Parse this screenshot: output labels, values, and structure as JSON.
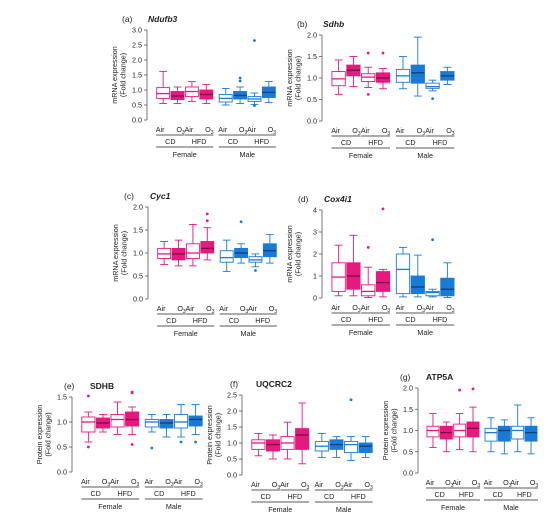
{
  "chart_data": [
    {
      "type": "box",
      "letter": "(a)",
      "title": "Ndufb3",
      "title_style": "italic",
      "ylabel": [
        "mRNA expression",
        "(Fold change)"
      ],
      "ylim": [
        0,
        3.0
      ],
      "yticks": [
        "0.0",
        "0.5",
        "1.0",
        "1.5",
        "2.0",
        "2.5",
        "3.0"
      ],
      "bottom_labels": [
        "Air",
        "O3",
        "Air",
        "O3",
        "Air",
        "O3",
        "Air",
        "O3"
      ],
      "diet_labels": [
        "CD",
        "HFD",
        "CD",
        "HFD"
      ],
      "sex_labels": [
        "Female",
        "Male"
      ],
      "colors": {
        "female": "#e6197e",
        "male": "#1a7ad6"
      },
      "boxes": [
        {
          "q1": 0.72,
          "median": 0.88,
          "q3": 1.08,
          "wlo": 0.55,
          "whi": 1.62,
          "out": []
        },
        {
          "q1": 0.68,
          "median": 0.8,
          "q3": 0.95,
          "wlo": 0.55,
          "whi": 1.1,
          "out": []
        },
        {
          "q1": 0.78,
          "median": 0.95,
          "q3": 1.1,
          "wlo": 0.62,
          "whi": 1.28,
          "out": []
        },
        {
          "q1": 0.7,
          "median": 0.85,
          "q3": 1.0,
          "wlo": 0.55,
          "whi": 1.18,
          "out": []
        },
        {
          "q1": 0.6,
          "median": 0.72,
          "q3": 0.85,
          "wlo": 0.5,
          "whi": 1.05,
          "out": []
        },
        {
          "q1": 0.7,
          "median": 0.82,
          "q3": 0.95,
          "wlo": 0.55,
          "whi": 1.1,
          "out": [
            1.3,
            1.4
          ]
        },
        {
          "q1": 0.62,
          "median": 0.7,
          "q3": 0.78,
          "wlo": 0.52,
          "whi": 0.9,
          "out": [
            2.65,
            0.48
          ]
        },
        {
          "q1": 0.75,
          "median": 0.92,
          "q3": 1.1,
          "wlo": 0.58,
          "whi": 1.28,
          "out": []
        }
      ]
    },
    {
      "type": "box",
      "letter": "(b)",
      "title": "Sdhb",
      "title_style": "italic",
      "ylabel": [
        "mRNA expression",
        "(Fold change)"
      ],
      "ylim": [
        0,
        2.0
      ],
      "yticks": [
        "0.0",
        "0.5",
        "1.0",
        "1.5",
        "2.0"
      ],
      "bottom_labels": [
        "Air",
        "O3",
        "Air",
        "O3",
        "Air",
        "O3",
        "Air",
        "O3"
      ],
      "diet_labels": [
        "CD",
        "HFD",
        "CD",
        "HFD"
      ],
      "sex_labels": [
        "Female",
        "Male"
      ],
      "colors": {
        "female": "#e6197e",
        "male": "#1a7ad6"
      },
      "boxes": [
        {
          "q1": 0.82,
          "median": 0.98,
          "q3": 1.15,
          "wlo": 0.62,
          "whi": 1.42,
          "out": []
        },
        {
          "q1": 1.05,
          "median": 1.18,
          "q3": 1.3,
          "wlo": 0.8,
          "whi": 1.5,
          "out": []
        },
        {
          "q1": 0.92,
          "median": 1.02,
          "q3": 1.1,
          "wlo": 0.78,
          "whi": 1.25,
          "out": [
            1.58,
            0.62
          ]
        },
        {
          "q1": 0.9,
          "median": 1.0,
          "q3": 1.12,
          "wlo": 0.75,
          "whi": 1.22,
          "out": [
            1.58
          ]
        },
        {
          "q1": 0.9,
          "median": 1.05,
          "q3": 1.2,
          "wlo": 0.75,
          "whi": 1.5,
          "out": []
        },
        {
          "q1": 0.88,
          "median": 1.12,
          "q3": 1.3,
          "wlo": 0.58,
          "whi": 1.95,
          "out": []
        },
        {
          "q1": 0.76,
          "median": 0.8,
          "q3": 0.88,
          "wlo": 0.7,
          "whi": 0.95,
          "out": [
            0.52
          ]
        },
        {
          "q1": 0.95,
          "median": 1.05,
          "q3": 1.15,
          "wlo": 0.85,
          "whi": 1.25,
          "out": []
        }
      ]
    },
    {
      "type": "box",
      "letter": "(c)",
      "title": "Cyc1",
      "title_style": "italic",
      "ylabel": [
        "mRNA expression",
        "(Fold change)"
      ],
      "ylim": [
        0,
        2.0
      ],
      "yticks": [
        "0.0",
        "0.5",
        "1.0",
        "1.5",
        "2.0"
      ],
      "bottom_labels": [
        "Air",
        "O3",
        "Air",
        "O3",
        "Air",
        "O3",
        "Air",
        "O3"
      ],
      "diet_labels": [
        "CD",
        "HFD",
        "CD",
        "HFD"
      ],
      "sex_labels": [
        "Female",
        "Male"
      ],
      "colors": {
        "female": "#e6197e",
        "male": "#1a7ad6"
      },
      "boxes": [
        {
          "q1": 0.88,
          "median": 0.98,
          "q3": 1.1,
          "wlo": 0.75,
          "whi": 1.25,
          "out": []
        },
        {
          "q1": 0.85,
          "median": 0.98,
          "q3": 1.1,
          "wlo": 0.72,
          "whi": 1.28,
          "out": []
        },
        {
          "q1": 0.88,
          "median": 1.0,
          "q3": 1.2,
          "wlo": 0.72,
          "whi": 1.62,
          "out": []
        },
        {
          "q1": 1.0,
          "median": 1.1,
          "q3": 1.25,
          "wlo": 0.85,
          "whi": 1.55,
          "out": [
            1.85,
            1.7
          ]
        },
        {
          "q1": 0.8,
          "median": 0.9,
          "q3": 1.05,
          "wlo": 0.6,
          "whi": 1.28,
          "out": []
        },
        {
          "q1": 0.9,
          "median": 1.0,
          "q3": 1.1,
          "wlo": 0.78,
          "whi": 1.2,
          "out": [
            1.68
          ]
        },
        {
          "q1": 0.8,
          "median": 0.85,
          "q3": 0.92,
          "wlo": 0.7,
          "whi": 0.98,
          "out": [
            0.62
          ]
        },
        {
          "q1": 0.92,
          "median": 1.05,
          "q3": 1.2,
          "wlo": 0.78,
          "whi": 1.4,
          "out": []
        }
      ]
    },
    {
      "type": "box",
      "letter": "(d)",
      "title": "Cox4i1",
      "title_style": "italic",
      "ylabel": [
        "mRNA expression",
        "(Fold change)"
      ],
      "ylim": [
        0,
        4.0
      ],
      "yticks": [
        "0",
        "1",
        "2",
        "3",
        "4"
      ],
      "bottom_labels": [
        "Air",
        "O3",
        "Air",
        "O3",
        "Air",
        "O3",
        "Air",
        "O3"
      ],
      "diet_labels": [
        "CD",
        "HFD",
        "CD",
        "HFD"
      ],
      "sex_labels": [
        "Female",
        "Male"
      ],
      "colors": {
        "female": "#e6197e",
        "male": "#1a7ad6"
      },
      "boxes": [
        {
          "q1": 0.3,
          "median": 0.95,
          "q3": 1.6,
          "wlo": 0.1,
          "whi": 2.4,
          "out": []
        },
        {
          "q1": 0.4,
          "median": 1.0,
          "q3": 1.6,
          "wlo": 0.1,
          "whi": 2.85,
          "out": []
        },
        {
          "q1": 0.1,
          "median": 0.3,
          "q3": 0.6,
          "wlo": 0.02,
          "whi": 1.4,
          "out": [
            2.3
          ]
        },
        {
          "q1": 0.3,
          "median": 0.7,
          "q3": 1.2,
          "wlo": 0.05,
          "whi": 1.3,
          "out": [
            4.05
          ]
        },
        {
          "q1": 0.2,
          "median": 1.3,
          "q3": 2.0,
          "wlo": 0.05,
          "whi": 2.3,
          "out": []
        },
        {
          "q1": 0.2,
          "median": 0.5,
          "q3": 1.0,
          "wlo": 0.05,
          "whi": 1.95,
          "out": []
        },
        {
          "q1": 0.1,
          "median": 0.25,
          "q3": 0.3,
          "wlo": 0.05,
          "whi": 0.4,
          "out": [
            2.65
          ]
        },
        {
          "q1": 0.1,
          "median": 0.4,
          "q3": 0.9,
          "wlo": 0.02,
          "whi": 1.6,
          "out": []
        }
      ]
    },
    {
      "type": "box",
      "letter": "(e)",
      "title": "SDHB",
      "title_style": "bold",
      "ylabel": [
        "Protein expression",
        "(Fold change)"
      ],
      "ylim": [
        0,
        1.5
      ],
      "yticks": [
        "0.0",
        "0.5",
        "1.0",
        "1.5"
      ],
      "bottom_labels": [
        "Air",
        "O3",
        "Air",
        "O3",
        "Air",
        "O3",
        "Air",
        "O3"
      ],
      "diet_labels": [
        "CD",
        "HFD",
        "CD",
        "HFD"
      ],
      "sex_labels": [
        "Female",
        "Male"
      ],
      "colors": {
        "female": "#e6197e",
        "male": "#1a7ad6"
      },
      "boxes": [
        {
          "q1": 0.8,
          "median": 1.0,
          "q3": 1.1,
          "wlo": 0.6,
          "whi": 1.2,
          "out": [
            1.52,
            0.5
          ]
        },
        {
          "q1": 0.88,
          "median": 0.98,
          "q3": 1.08,
          "wlo": 0.8,
          "whi": 1.15,
          "out": []
        },
        {
          "q1": 0.9,
          "median": 1.05,
          "q3": 1.15,
          "wlo": 0.75,
          "whi": 1.4,
          "out": []
        },
        {
          "q1": 0.92,
          "median": 1.05,
          "q3": 1.2,
          "wlo": 0.75,
          "whi": 1.3,
          "out": [
            1.6,
            1.58,
            0.55
          ]
        },
        {
          "q1": 0.9,
          "median": 1.0,
          "q3": 1.05,
          "wlo": 0.8,
          "whi": 1.15,
          "out": [
            0.48
          ]
        },
        {
          "q1": 0.88,
          "median": 0.98,
          "q3": 1.05,
          "wlo": 0.7,
          "whi": 1.15,
          "out": []
        },
        {
          "q1": 0.88,
          "median": 1.0,
          "q3": 1.15,
          "wlo": 0.7,
          "whi": 1.35,
          "out": [
            0.6
          ]
        },
        {
          "q1": 0.92,
          "median": 1.05,
          "q3": 1.12,
          "wlo": 0.75,
          "whi": 1.35,
          "out": [
            0.6
          ]
        }
      ]
    },
    {
      "type": "box",
      "letter": "(f)",
      "title": "UQCRC2",
      "title_style": "bold",
      "ylabel": [
        "Protein expression",
        "(Fold change)"
      ],
      "ylim": [
        0,
        2.5
      ],
      "yticks": [
        "0.0",
        "0.5",
        "1.0",
        "1.5",
        "2.0",
        "2.5"
      ],
      "bottom_labels": [
        "Air",
        "O3",
        "Air",
        "O3",
        "Air",
        "O3",
        "Air",
        "O3"
      ],
      "diet_labels": [
        "CD",
        "HFD",
        "CD",
        "HFD"
      ],
      "sex_labels": [
        "Female",
        "Male"
      ],
      "colors": {
        "female": "#e6197e",
        "male": "#1a7ad6"
      },
      "boxes": [
        {
          "q1": 0.8,
          "median": 1.0,
          "q3": 1.1,
          "wlo": 0.6,
          "whi": 1.3,
          "out": []
        },
        {
          "q1": 0.75,
          "median": 0.95,
          "q3": 1.1,
          "wlo": 0.5,
          "whi": 1.25,
          "out": []
        },
        {
          "q1": 0.8,
          "median": 1.0,
          "q3": 1.2,
          "wlo": 0.5,
          "whi": 1.65,
          "out": []
        },
        {
          "q1": 0.8,
          "median": 1.25,
          "q3": 1.45,
          "wlo": 0.35,
          "whi": 2.25,
          "out": []
        },
        {
          "q1": 0.75,
          "median": 0.9,
          "q3": 1.05,
          "wlo": 0.55,
          "whi": 1.3,
          "out": []
        },
        {
          "q1": 0.8,
          "median": 0.95,
          "q3": 1.1,
          "wlo": 0.55,
          "whi": 1.2,
          "out": []
        },
        {
          "q1": 0.7,
          "median": 0.95,
          "q3": 1.05,
          "wlo": 0.45,
          "whi": 1.2,
          "out": [
            2.35
          ]
        },
        {
          "q1": 0.7,
          "median": 0.9,
          "q3": 1.0,
          "wlo": 0.55,
          "whi": 1.2,
          "out": []
        }
      ]
    },
    {
      "type": "box",
      "letter": "(g)",
      "title": "ATP5A",
      "title_style": "bold",
      "ylabel": [
        "Protein expression",
        "(Fold change)"
      ],
      "ylim": [
        0,
        2.0
      ],
      "yticks": [
        "0.0",
        "0.5",
        "1.0",
        "1.5",
        "2.0"
      ],
      "bottom_labels": [
        "Air",
        "O3",
        "Air",
        "O3",
        "Air",
        "O3",
        "Air",
        "O3"
      ],
      "diet_labels": [
        "CD",
        "HFD",
        "CD",
        "HFD"
      ],
      "sex_labels": [
        "Female",
        "Male"
      ],
      "colors": {
        "female": "#e6197e",
        "male": "#1a7ad6"
      },
      "boxes": [
        {
          "q1": 0.85,
          "median": 1.0,
          "q3": 1.1,
          "wlo": 0.6,
          "whi": 1.4,
          "out": []
        },
        {
          "q1": 0.8,
          "median": 0.95,
          "q3": 1.1,
          "wlo": 0.5,
          "whi": 1.2,
          "out": []
        },
        {
          "q1": 0.85,
          "median": 1.0,
          "q3": 1.15,
          "wlo": 0.55,
          "whi": 1.4,
          "out": [
            1.95
          ]
        },
        {
          "q1": 0.85,
          "median": 1.05,
          "q3": 1.2,
          "wlo": 0.5,
          "whi": 1.55,
          "out": [
            1.98
          ]
        },
        {
          "q1": 0.75,
          "median": 0.95,
          "q3": 1.05,
          "wlo": 0.5,
          "whi": 1.3,
          "out": []
        },
        {
          "q1": 0.75,
          "median": 1.0,
          "q3": 1.1,
          "wlo": 0.45,
          "whi": 1.25,
          "out": []
        },
        {
          "q1": 0.8,
          "median": 1.0,
          "q3": 1.1,
          "wlo": 0.5,
          "whi": 1.6,
          "out": []
        },
        {
          "q1": 0.75,
          "median": 0.95,
          "q3": 1.1,
          "wlo": 0.45,
          "whi": 1.3,
          "out": []
        }
      ]
    }
  ]
}
